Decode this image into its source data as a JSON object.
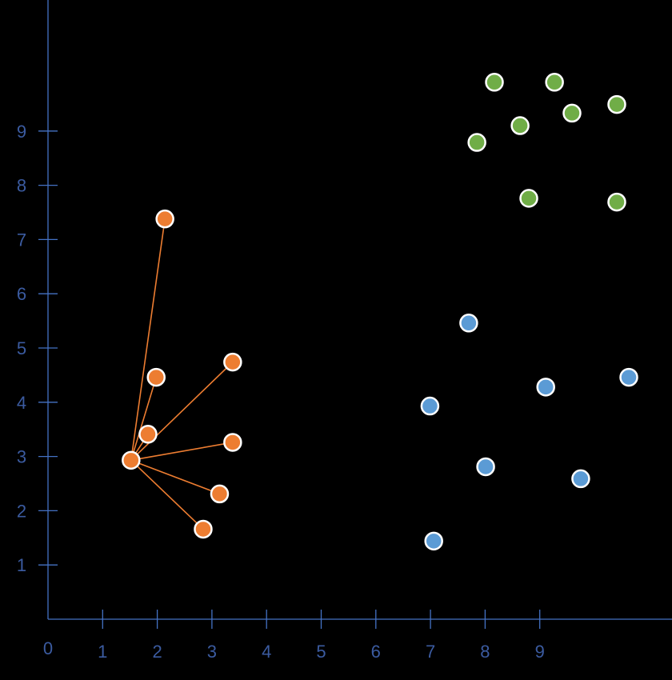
{
  "chart_data": {
    "type": "scatter",
    "title": "",
    "xlabel": "",
    "ylabel": "",
    "xlim": [
      0,
      11.5
    ],
    "ylim": [
      0,
      11.3
    ],
    "grid": false,
    "legend": null,
    "x_ticks": [
      "0",
      "1",
      "2",
      "3",
      "4",
      "5",
      "6",
      "7",
      "8",
      "9"
    ],
    "y_ticks": [
      "1",
      "2",
      "3",
      "4",
      "5",
      "6",
      "7",
      "8",
      "9"
    ],
    "axis_color": "#4472c4",
    "tick_label_color": "#3b5ba0",
    "series": [
      {
        "name": "orange",
        "color": "#ed7d31",
        "points": [
          [
            1.52,
            2.93
          ],
          [
            2.14,
            7.38
          ],
          [
            1.98,
            4.46
          ],
          [
            1.83,
            3.41
          ],
          [
            3.38,
            4.74
          ],
          [
            3.38,
            3.26
          ],
          [
            3.14,
            2.31
          ],
          [
            2.84,
            1.66
          ]
        ],
        "connector_center_index": 0
      },
      {
        "name": "green",
        "color": "#70ad47",
        "points": [
          [
            8.17,
            9.9
          ],
          [
            9.27,
            9.9
          ],
          [
            9.59,
            9.33
          ],
          [
            10.41,
            9.49
          ],
          [
            8.64,
            9.1
          ],
          [
            7.85,
            8.79
          ],
          [
            8.8,
            7.76
          ],
          [
            10.41,
            7.69
          ]
        ]
      },
      {
        "name": "blue",
        "color": "#5b9bd5",
        "points": [
          [
            7.7,
            5.46
          ],
          [
            9.11,
            4.28
          ],
          [
            10.63,
            4.46
          ],
          [
            6.99,
            3.93
          ],
          [
            8.01,
            2.81
          ],
          [
            9.75,
            2.59
          ],
          [
            7.06,
            1.44
          ]
        ]
      }
    ]
  }
}
